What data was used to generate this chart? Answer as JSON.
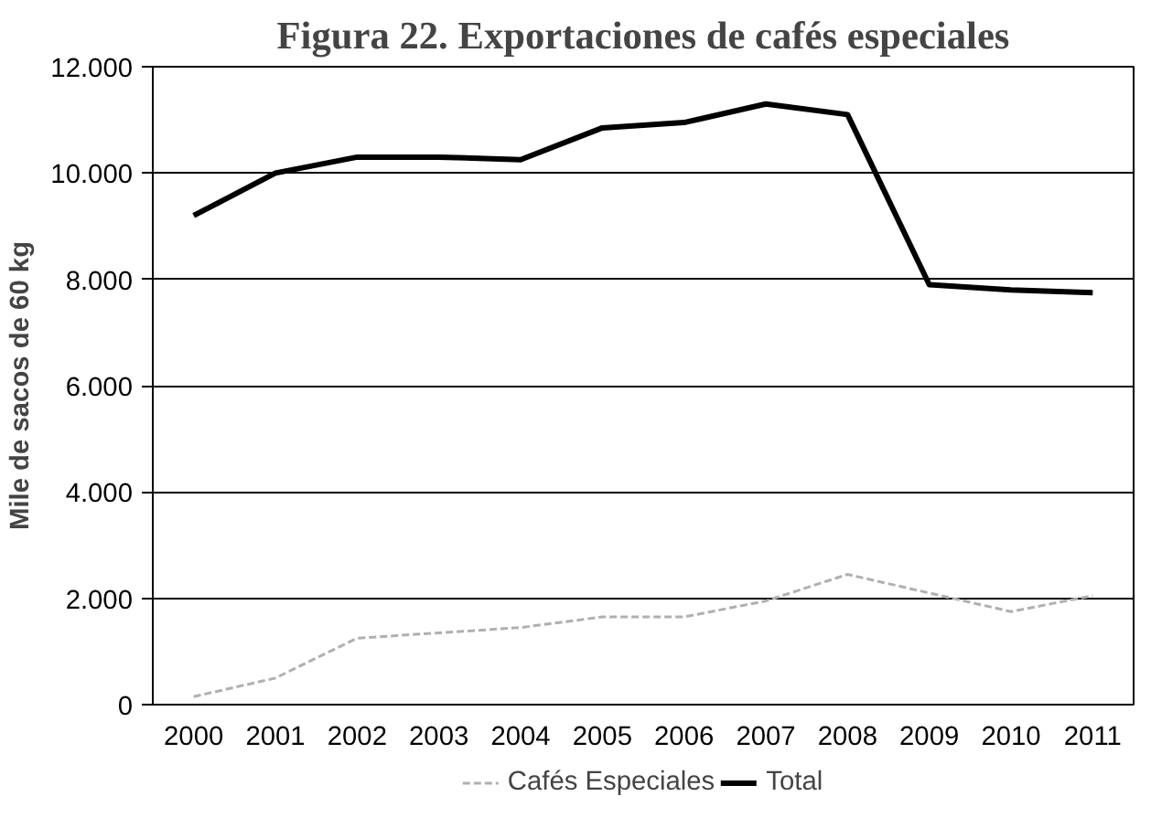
{
  "chart_data": {
    "type": "line",
    "title": "Figura 22. Exportaciones de cafés especiales",
    "ylabel": "Mile de sacos de 60 kg",
    "categories": [
      "2000",
      "2001",
      "2002",
      "2003",
      "2004",
      "2005",
      "2006",
      "2007",
      "2008",
      "2009",
      "2010",
      "2011"
    ],
    "series": [
      {
        "name": "Cafés Especiales",
        "color": "#b0b0b0",
        "line_style": "dashed",
        "values": [
          150,
          500,
          1250,
          1350,
          1450,
          1650,
          1650,
          1950,
          2450,
          2100,
          1750,
          2050
        ]
      },
      {
        "name": "Total",
        "color": "#000000",
        "line_style": "solid",
        "values": [
          9200,
          10000,
          10300,
          10300,
          10250,
          10850,
          10950,
          11300,
          11100,
          7900,
          7800,
          7750
        ]
      }
    ],
    "ylim": [
      0,
      12000
    ],
    "yticks": [
      {
        "value": 0,
        "label": "0"
      },
      {
        "value": 2000,
        "label": "2.000"
      },
      {
        "value": 4000,
        "label": "4.000"
      },
      {
        "value": 6000,
        "label": "6.000"
      },
      {
        "value": 8000,
        "label": "8.000"
      },
      {
        "value": 10000,
        "label": "10.000"
      },
      {
        "value": 12000,
        "label": "12.000"
      }
    ],
    "grid": "y",
    "legend": "bottom"
  }
}
